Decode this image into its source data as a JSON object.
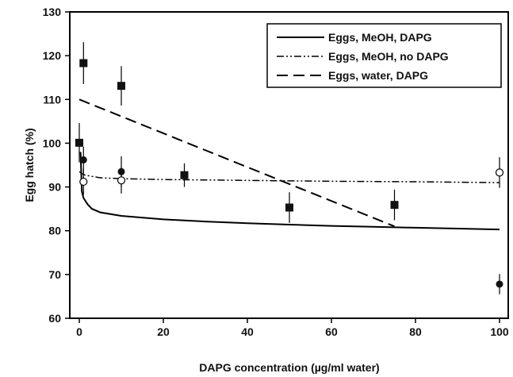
{
  "chart_data": {
    "type": "scatter",
    "xlabel": "DAPG concentration (µg/ml water)",
    "ylabel": "Egg hatch (%)",
    "xlim": [
      0,
      100
    ],
    "ylim": [
      60,
      130
    ],
    "xticks": [
      "0",
      "20",
      "40",
      "60",
      "80",
      "100"
    ],
    "yticks": [
      "60",
      "70",
      "80",
      "90",
      "100",
      "110",
      "120",
      "130"
    ],
    "grid": false,
    "legend_position": "top-right",
    "series": [
      {
        "name": "Eggs, MeOH, DAPG",
        "line_style": "solid",
        "marker": "filled-circle",
        "curve": {
          "x": [
            0.3,
            0.6,
            1,
            2,
            3,
            5,
            10,
            20,
            30,
            40,
            50,
            60,
            70,
            80,
            90,
            100
          ],
          "y": [
            98,
            89,
            87.5,
            86,
            85,
            84.2,
            83.4,
            82.6,
            82.1,
            81.7,
            81.4,
            81.1,
            80.9,
            80.7,
            80.5,
            80.3
          ]
        },
        "points": {
          "x": [
            1,
            10,
            100
          ],
          "y": [
            96.2,
            93.5,
            67.8
          ],
          "err": [
            3.0,
            3.5,
            2.3
          ]
        }
      },
      {
        "name": "Eggs, MeOH, no DAPG",
        "line_style": "dash-dot-dot",
        "marker": "open-circle",
        "curve": {
          "x": [
            0,
            1,
            3,
            5,
            10,
            20,
            40,
            60,
            80,
            100
          ],
          "y": [
            93.5,
            92.8,
            92.4,
            92.1,
            91.9,
            91.7,
            91.5,
            91.3,
            91.2,
            91.0
          ]
        },
        "points": {
          "x": [
            1,
            10,
            100
          ],
          "y": [
            91.2,
            91.5,
            93.3
          ],
          "err": [
            3.0,
            3.0,
            3.5
          ]
        }
      },
      {
        "name": "Eggs, water, DAPG",
        "line_style": "dashed",
        "marker": "filled-square",
        "curve": {
          "x": [
            0,
            75
          ],
          "y": [
            110,
            81
          ]
        },
        "points": {
          "x": [
            0,
            1,
            10,
            25,
            50,
            75
          ],
          "y": [
            100.1,
            118.3,
            113.1,
            92.7,
            85.3,
            85.9
          ],
          "err": [
            4.5,
            4.8,
            4.5,
            2.7,
            3.5,
            3.5
          ]
        }
      }
    ]
  }
}
